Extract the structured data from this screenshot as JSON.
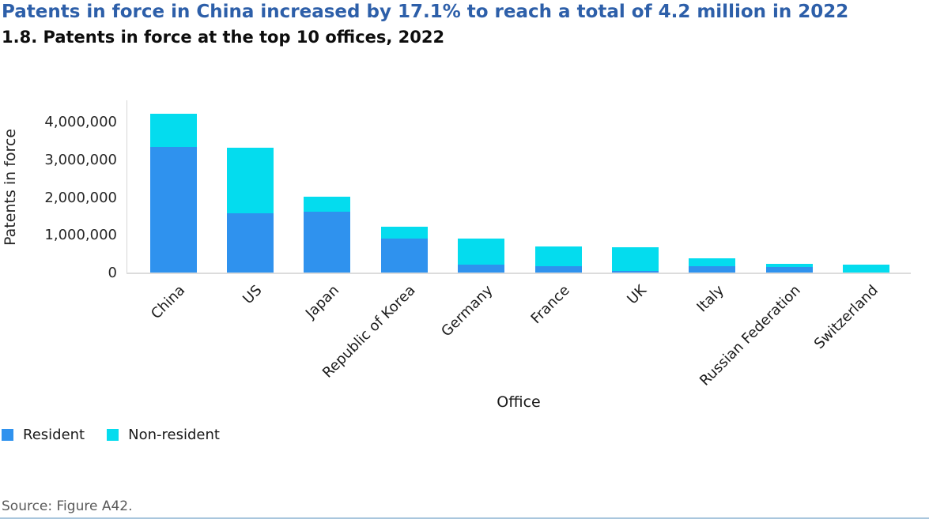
{
  "header": {
    "title": "Patents in force in China increased by 17.1% to reach a total of 4.2 million in 2022",
    "figure_title": "1.8. Patents in force at the top 10 offices, 2022"
  },
  "colors": {
    "title_accent": "#2d5fa9",
    "resident": "#2f92ee",
    "non_resident": "#04dcee",
    "axis_line": "#dcdcdc",
    "source_text": "#595959"
  },
  "chart_data": {
    "type": "bar",
    "stacked": true,
    "title": "1.8. Patents in force at the top 10 offices, 2022",
    "xlabel": "Office",
    "ylabel": "Patents in force",
    "categories": [
      "China",
      "US",
      "Japan",
      "Republic of Korea",
      "Germany",
      "France",
      "UK",
      "Italy",
      "Russian Federation",
      "Switzerland"
    ],
    "series": [
      {
        "name": "Resident",
        "color": "#2f92ee",
        "values": [
          3360000,
          1590000,
          1640000,
          930000,
          240000,
          180000,
          70000,
          190000,
          175000,
          15000
        ]
      },
      {
        "name": "Non-resident",
        "color": "#04dcee",
        "values": [
          860000,
          1750000,
          400000,
          310000,
          680000,
          530000,
          630000,
          210000,
          85000,
          225000
        ]
      }
    ],
    "totals": [
      4220000,
      3340000,
      2040000,
      1240000,
      920000,
      710000,
      700000,
      400000,
      260000,
      240000
    ],
    "ylim": [
      0,
      4600000
    ],
    "yticks": [
      0,
      1000000,
      2000000,
      3000000,
      4000000
    ],
    "ytick_labels": [
      "0",
      "1,000,000",
      "2,000,000",
      "3,000,000",
      "4,000,000"
    ],
    "grid": false,
    "legend_position": "bottom-left"
  },
  "legend": {
    "items": [
      {
        "label": "Resident",
        "color": "#2f92ee"
      },
      {
        "label": "Non-resident",
        "color": "#04dcee"
      }
    ]
  },
  "footer": {
    "source": "Source: Figure A42."
  }
}
